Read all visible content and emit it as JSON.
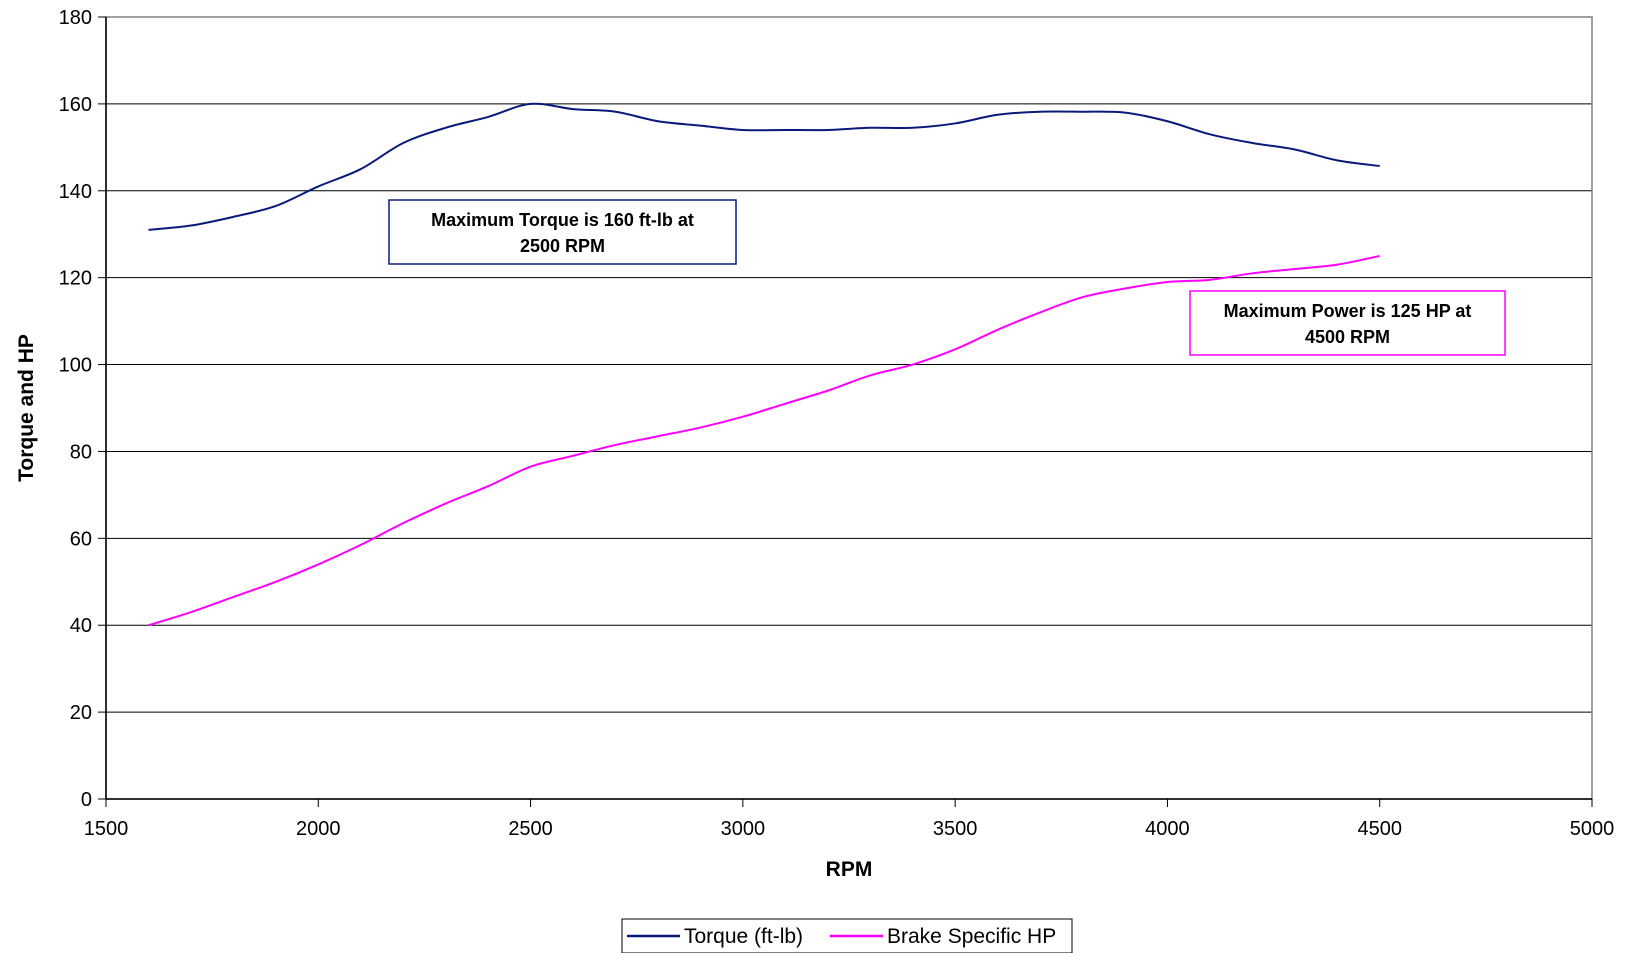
{
  "chart_data": {
    "type": "line",
    "title": "",
    "xlabel": "RPM",
    "ylabel": "Torque and HP",
    "xlim": [
      1500,
      5000
    ],
    "ylim": [
      0,
      180
    ],
    "x_ticks": [
      1500,
      2000,
      2500,
      3000,
      3500,
      4000,
      4500,
      5000
    ],
    "y_ticks": [
      0,
      20,
      40,
      60,
      80,
      100,
      120,
      140,
      160,
      180
    ],
    "grid": "horizontal",
    "legend_position": "bottom-center",
    "x": [
      1600,
      1700,
      1800,
      1900,
      2000,
      2100,
      2200,
      2300,
      2400,
      2500,
      2600,
      2700,
      2800,
      2900,
      3000,
      3100,
      3200,
      3300,
      3400,
      3500,
      3600,
      3700,
      3800,
      3900,
      4000,
      4100,
      4200,
      4300,
      4400,
      4500
    ],
    "series": [
      {
        "name": "Torque (ft-lb)",
        "color": "#0a1a7a",
        "values": [
          131,
          132,
          134,
          136.5,
          141,
          145,
          151,
          154.5,
          157,
          160,
          158.8,
          158.2,
          156,
          155,
          154,
          154,
          154,
          154.5,
          154.5,
          155.5,
          157.5,
          158.2,
          158.2,
          158,
          156,
          153,
          151,
          149.5,
          147,
          145.7
        ]
      },
      {
        "name": "Brake Specific HP",
        "color": "#ff00ff",
        "values": [
          40,
          43,
          46.5,
          50,
          54,
          58.5,
          63.5,
          68,
          72,
          76.5,
          79,
          81.5,
          83.5,
          85.5,
          88,
          91,
          94,
          97.5,
          100,
          103.5,
          108,
          112,
          115.5,
          117.5,
          119,
          119.5,
          121,
          122,
          123,
          125
        ]
      }
    ],
    "annotations": [
      {
        "text_line1": "Maximum Torque is 160 ft-lb at",
        "text_line2": "2500 RPM",
        "border_color": "#0a1a7a"
      },
      {
        "text_line1": "Maximum Power is 125 HP at",
        "text_line2": "4500 RPM",
        "border_color": "#ff00ff"
      }
    ]
  }
}
